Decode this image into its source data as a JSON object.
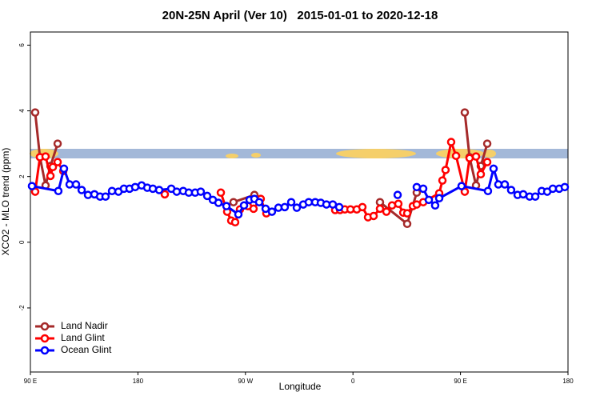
{
  "chart_data": {
    "type": "line",
    "title": "20N-25N April (Ver 10)   2015-01-01 to 2020-12-18",
    "x_label": "Longitude",
    "y_label": "XCO2 - MLO trend (ppm)",
    "xlim": [
      90,
      540
    ],
    "ylim": [
      -3.95,
      6.4
    ],
    "xticks": [
      {
        "value": 90,
        "label": "90 E"
      },
      180,
      {
        "value": 270,
        "label": "90 W"
      },
      {
        "value": 360,
        "label": "0"
      },
      {
        "value": 450,
        "label": "90 E"
      },
      {
        "value": 540,
        "label": "180"
      }
    ],
    "yticks": [
      -2,
      0,
      2,
      4,
      6
    ],
    "legend": "bottom-left",
    "series": [
      {
        "name": "Land Nadir",
        "color": "#a52a2a",
        "x": [
          94.0,
          98.0,
          102.7,
          106.8,
          112.8,
          160,
          260.0,
          277.5,
          320,
          382.6,
          405.4,
          413.4,
          430,
          453.6,
          457.6,
          463.0,
          467.0,
          472.4
        ],
        "values": [
          3.95,
          2.59,
          1.73,
          2.32,
          3.0,
          null,
          1.22,
          1.44,
          null,
          1.22,
          0.56,
          1.51,
          null,
          3.95,
          2.59,
          1.73,
          2.32,
          3.0
        ]
      },
      {
        "name": "Land Glint",
        "color": "#ff0000",
        "x": [
          94.0,
          98.0,
          102.7,
          106.8,
          108.8,
          112.8,
          117.5,
          160,
          202.5,
          230,
          249.4,
          254.7,
          258.1,
          261.4,
          265.4,
          272.1,
          276.8,
          282.8,
          287.5,
          320,
          345.1,
          349.2,
          353.2,
          357.9,
          363.2,
          367.9,
          372.6,
          377.3,
          382.6,
          388.0,
          392.7,
          398.0,
          402.1,
          405.4,
          410.1,
          413.4,
          418.8,
          432.2,
          434.9,
          437.5,
          442.2,
          446.3,
          453.6,
          457.6,
          463.0,
          467.0,
          472.4
        ],
        "values": [
          1.54,
          2.59,
          2.61,
          2.02,
          2.29,
          2.44,
          2.17,
          null,
          1.46,
          null,
          1.51,
          0.93,
          0.66,
          0.61,
          1.0,
          1.1,
          1.02,
          1.32,
          0.88,
          null,
          0.98,
          0.98,
          1.0,
          1.0,
          1.0,
          1.07,
          0.76,
          0.8,
          1.02,
          0.93,
          1.12,
          1.17,
          0.9,
          0.88,
          1.1,
          1.15,
          1.22,
          1.49,
          1.88,
          2.2,
          3.05,
          2.63,
          1.54,
          2.56,
          2.61,
          2.07,
          2.44
        ]
      },
      {
        "name": "Ocean Glint",
        "color": "#0000ff",
        "x": [
          91.3,
          113.4,
          118.1,
          122.8,
          128.2,
          132.9,
          138.2,
          143.6,
          148.3,
          152.9,
          158.3,
          163.7,
          168.3,
          173.0,
          177.7,
          183.1,
          187.8,
          192.5,
          197.8,
          207.9,
          212.5,
          217.9,
          222.6,
          227.9,
          232.6,
          238.0,
          242.7,
          247.4,
          254.1,
          264.1,
          268.8,
          273.5,
          277.5,
          281.5,
          286.9,
          292.2,
          297.6,
          302.9,
          308.3,
          313.0,
          318.4,
          323.0,
          328.4,
          333.1,
          337.8,
          343.1,
          348.5,
          370,
          397.4,
          405,
          413.4,
          418.8,
          423.5,
          428.8,
          432.2,
          450.9,
          473.0,
          477.7,
          481.7,
          487.1,
          492.4,
          497.8,
          502.5,
          507.9,
          512.6,
          518.0,
          522.6,
          527.3,
          532.6,
          537.3
        ],
        "values": [
          1.71,
          1.56,
          2.24,
          1.76,
          1.76,
          1.59,
          1.44,
          1.46,
          1.39,
          1.39,
          1.56,
          1.54,
          1.63,
          1.63,
          1.68,
          1.73,
          1.66,
          1.63,
          1.59,
          1.63,
          1.54,
          1.56,
          1.51,
          1.51,
          1.54,
          1.41,
          1.29,
          1.2,
          1.1,
          0.85,
          1.12,
          1.29,
          1.32,
          1.22,
          1.02,
          0.93,
          1.05,
          1.07,
          1.22,
          1.05,
          1.15,
          1.22,
          1.22,
          1.2,
          1.15,
          1.15,
          1.07,
          null,
          1.44,
          null,
          1.68,
          1.63,
          1.29,
          1.12,
          1.34,
          1.71,
          1.56,
          2.24,
          1.76,
          1.76,
          1.59,
          1.44,
          1.46,
          1.39,
          1.39,
          1.56,
          1.54,
          1.63,
          1.63,
          1.68
        ]
      }
    ]
  }
}
